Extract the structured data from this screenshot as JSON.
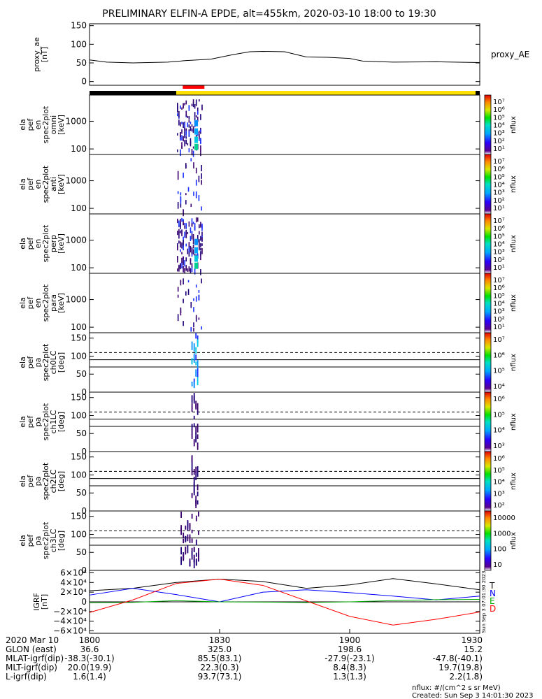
{
  "chart_data": {
    "type": "multi-panel time series",
    "title": "PRELIMINARY ELFIN-A EPDE, alt=455km, 2020-03-10 18:00 to 19:30",
    "time_ticks": [
      "1800",
      "1830",
      "1900",
      "1930"
    ],
    "time_range_minutes": [
      0,
      90
    ],
    "panels": [
      {
        "id": "proxy_ae",
        "ylabel": [
          "proxy_ae",
          "[nT]"
        ],
        "ylim": [
          -10,
          155
        ],
        "yticks": [
          "150",
          "100",
          "50",
          "0"
        ],
        "legend": "proxy_AE",
        "series": {
          "t": [
            0,
            4,
            10,
            18,
            22,
            28,
            33,
            37,
            40,
            45,
            50,
            55,
            60,
            63,
            70,
            80,
            90
          ],
          "v": [
            58,
            52,
            50,
            52,
            56,
            60,
            72,
            80,
            81,
            80,
            66,
            65,
            62,
            55,
            52,
            53,
            51
          ]
        }
      },
      {
        "id": "en_omni",
        "ylabel": [
          "ela",
          "pef",
          "en",
          "spec2plot",
          "omni",
          "[keV]"
        ],
        "yticks": [
          "1000",
          "100"
        ],
        "colorbar": {
          "label": "nflux",
          "ticks": [
            "10⁷",
            "10⁶",
            "10⁵",
            "10⁴",
            "10³",
            "10²",
            "10¹"
          ]
        }
      },
      {
        "id": "en_anti",
        "ylabel": [
          "ela",
          "pef",
          "en",
          "spec2plot",
          "anti",
          "[keV]"
        ],
        "yticks": [
          "1000",
          "100"
        ],
        "colorbar": {
          "label": "nflux",
          "ticks": [
            "10⁷",
            "10⁶",
            "10⁵",
            "10⁴",
            "10³",
            "10²",
            "10¹"
          ]
        }
      },
      {
        "id": "en_perp",
        "ylabel": [
          "ela",
          "pef",
          "en",
          "spec2plot",
          "perp",
          "[keV]"
        ],
        "yticks": [
          "1000",
          "100"
        ],
        "colorbar": {
          "label": "nflux",
          "ticks": [
            "10⁷",
            "10⁶",
            "10⁵",
            "10⁴",
            "10³",
            "10²",
            "10¹"
          ]
        }
      },
      {
        "id": "en_para",
        "ylabel": [
          "ela",
          "pef",
          "en",
          "spec2plot",
          "para",
          "[keV]"
        ],
        "yticks": [
          "1000",
          "100"
        ],
        "colorbar": {
          "label": "nflux",
          "ticks": [
            "10⁷",
            "10⁶",
            "10⁵",
            "10⁴",
            "10³",
            "10²",
            "10¹"
          ]
        }
      },
      {
        "id": "pa_ch0",
        "ylabel": [
          "ela",
          "pef",
          "pa",
          "spec2plot",
          "ch0LC",
          "[deg]"
        ],
        "yticks": [
          "150",
          "100",
          "50",
          "0"
        ],
        "colorbar": {
          "label": "nflux",
          "ticks": [
            "10⁷",
            "10⁶",
            "10⁵",
            "10⁴"
          ]
        }
      },
      {
        "id": "pa_ch1",
        "ylabel": [
          "ela",
          "pef",
          "pa",
          "spec2plot",
          "ch1LC",
          "[deg]"
        ],
        "yticks": [
          "150",
          "100",
          "50",
          "0"
        ],
        "colorbar": {
          "label": "nflux",
          "ticks": [
            "10⁶",
            "10⁵",
            "10⁴",
            "10³"
          ]
        }
      },
      {
        "id": "pa_ch2",
        "ylabel": [
          "ela",
          "pef",
          "pa",
          "spec2plot",
          "ch2LC",
          "[deg]"
        ],
        "yticks": [
          "150",
          "100",
          "50",
          "0"
        ],
        "colorbar": {
          "label": "nflux",
          "ticks": [
            "10⁶",
            "10⁵",
            "10⁴",
            "10³",
            "10²"
          ]
        }
      },
      {
        "id": "pa_ch3",
        "ylabel": [
          "ela",
          "pef",
          "pa",
          "spec2plot",
          "ch3LC",
          "[deg]"
        ],
        "yticks": [
          "150",
          "100",
          "50",
          "0"
        ],
        "colorbar": {
          "label": "nflux",
          "ticks": [
            "10000",
            "1000",
            "100",
            "10"
          ]
        }
      },
      {
        "id": "igrf",
        "ylabel": [
          "IGRF",
          "[nT]"
        ],
        "yticks": [
          "6×10⁴",
          "4×10⁴",
          "2×10⁴",
          "0",
          "−2×10⁴",
          "−4×10⁴",
          "−6×10⁴"
        ],
        "ylim": [
          -65000,
          65000
        ],
        "legend": [
          "T",
          "N",
          "E",
          "D"
        ],
        "colors": {
          "T": "#000000",
          "N": "#0000ff",
          "E": "#00aa00",
          "D": "#ff0000"
        },
        "side_note": "Sun Sep 3 07:01:30 2023",
        "series": {
          "t": [
            0,
            10,
            20,
            30,
            40,
            50,
            60,
            70,
            80,
            90
          ],
          "T": [
            23000,
            28000,
            40000,
            47000,
            42000,
            28000,
            35000,
            48000,
            37000,
            25000
          ],
          "N": [
            14000,
            28000,
            15000,
            0,
            20000,
            25000,
            19000,
            12000,
            4000,
            12000
          ],
          "E": [
            -2000,
            -1000,
            2500,
            0,
            -500,
            -1500,
            0,
            2500,
            4500,
            5000
          ],
          "D": [
            -22000,
            4000,
            38000,
            47000,
            34000,
            2000,
            -30000,
            -48000,
            -36000,
            -21000
          ]
        }
      }
    ],
    "spectra_window_minutes": [
      20,
      26
    ],
    "status_bar": {
      "black_until_min": 20,
      "red_marker_min": [
        21.5,
        26.5
      ]
    },
    "footer": {
      "rows": [
        [
          "2020 Mar 10",
          "1800",
          "1830",
          "1900",
          "1930"
        ],
        [
          "GLON (east)",
          "36.6",
          "325.0",
          "198.6",
          "15.2"
        ],
        [
          "MLAT-igrf(dip)",
          "-38.3(-30.1)",
          "85.5(83.1)",
          "-27.9(-23.1)",
          "-47.8(-40.1)"
        ],
        [
          "MLT-igrf(dip)",
          "20.0(19.9)",
          "22.3(0.3)",
          "8.4(8.3)",
          "19.7(19.8)"
        ],
        [
          "L-igrf(dip)",
          "1.6(1.4)",
          "93.7(73.1)",
          "1.3(1.3)",
          "2.2(1.8)"
        ]
      ],
      "units_note": "nflux: #/(cm^2 s sr MeV)",
      "created_note": "Created: Sun Sep  3 14:01:30 2023"
    }
  }
}
